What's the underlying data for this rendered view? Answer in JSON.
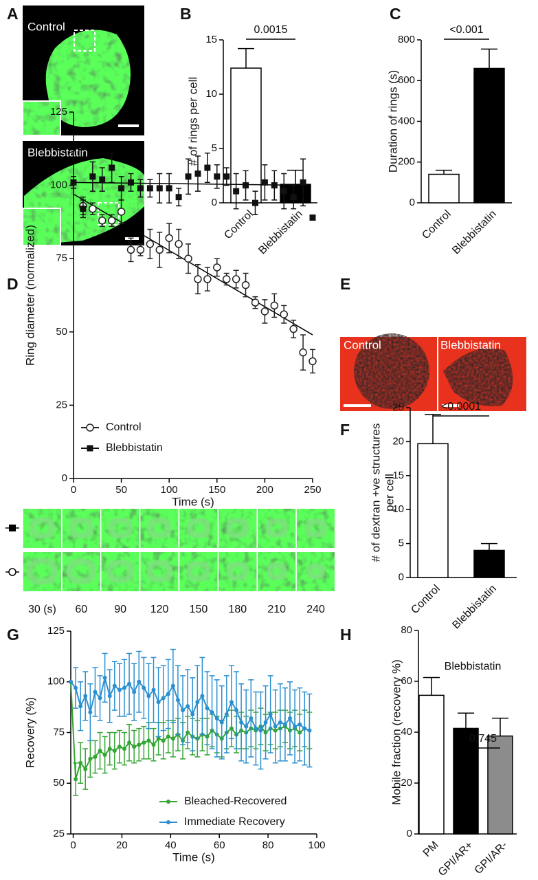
{
  "images": {
    "A": {
      "panel": "A",
      "labels": [
        "Control",
        "Blebbistatin"
      ]
    },
    "D_strip": {
      "times": [
        "30 (s)",
        "60",
        "90",
        "120",
        "150",
        "180",
        "210",
        "240"
      ]
    },
    "E": {
      "panel": "E",
      "labels": [
        "Control",
        "Blebbistatin"
      ]
    }
  },
  "chart_data": [
    {
      "panel": "B",
      "type": "bar",
      "ylabel": "# of rings per cell",
      "categories": [
        "Control",
        "Blebbistatin"
      ],
      "values": [
        12.4,
        1.7
      ],
      "errors": [
        1.8,
        1.3
      ],
      "colors": [
        "#ffffff",
        "#000000"
      ],
      "ylim": [
        0,
        15
      ],
      "yticks": [
        0,
        5,
        10,
        15
      ],
      "p_value": "0.0015"
    },
    {
      "panel": "C",
      "type": "bar",
      "ylabel": "Duration of rings (s)",
      "categories": [
        "Control",
        "Blebbistatin"
      ],
      "values": [
        140,
        660
      ],
      "errors": [
        20,
        95
      ],
      "colors": [
        "#ffffff",
        "#000000"
      ],
      "ylim": [
        0,
        800
      ],
      "yticks": [
        0,
        200,
        400,
        600,
        800
      ],
      "p_value": "<0.001"
    },
    {
      "panel": "D",
      "type": "scatter",
      "xlabel": "Time (s)",
      "ylabel": "Ring diameter (normalized)",
      "xlim": [
        0,
        250
      ],
      "xticks": [
        0,
        50,
        100,
        150,
        200,
        250
      ],
      "ylim": [
        0,
        125
      ],
      "yticks": [
        0,
        25,
        50,
        75,
        100,
        125
      ],
      "series": [
        {
          "name": "Control",
          "color": "#222222",
          "marker": "circle-open",
          "x": [
            10,
            20,
            30,
            40,
            50,
            60,
            70,
            80,
            90,
            100,
            110,
            120,
            130,
            140,
            150,
            160,
            170,
            180,
            190,
            200,
            210,
            220,
            230,
            240,
            250
          ],
          "values": [
            93,
            92,
            88,
            88,
            91,
            78,
            78,
            80,
            78,
            82,
            80,
            75,
            68,
            68,
            72,
            68,
            68,
            66,
            60,
            57,
            59,
            56,
            51,
            43,
            40
          ],
          "errors": [
            3,
            2,
            2,
            2,
            4,
            4,
            2,
            5,
            6,
            5,
            5,
            5,
            5,
            4,
            3,
            2,
            3,
            4,
            2,
            4,
            4,
            3,
            3,
            6,
            4
          ]
        },
        {
          "name": "Blebbistatin",
          "color": "#111111",
          "marker": "square",
          "x": [
            0,
            10,
            20,
            30,
            40,
            50,
            60,
            70,
            80,
            90,
            100,
            110,
            120,
            130,
            140,
            150,
            160,
            170,
            180,
            190,
            200,
            210,
            220,
            230,
            240,
            250
          ],
          "values": [
            101,
            92,
            103,
            102,
            106,
            99,
            101,
            99,
            99,
            99,
            99,
            96,
            103,
            104,
            106,
            103,
            103,
            98,
            100,
            94,
            101,
            100,
            98,
            96,
            101,
            89
          ],
          "errors": [
            2,
            3,
            5,
            4,
            5,
            4,
            3,
            3,
            3,
            5,
            5,
            3,
            6,
            6,
            5,
            4,
            3,
            6,
            5,
            4,
            6,
            5,
            6,
            4,
            8,
            0
          ]
        }
      ],
      "fits": [
        {
          "x": [
            0,
            250
          ],
          "values": [
            97,
            49
          ]
        },
        {
          "x": [
            0,
            245
          ],
          "values": [
            101,
            100
          ]
        }
      ]
    },
    {
      "panel": "F",
      "type": "bar",
      "ylabel": [
        "# of dextran +ve structures",
        "per cell"
      ],
      "categories": [
        "Control",
        "Blebbistatin"
      ],
      "values": [
        19.7,
        4.0
      ],
      "errors": [
        4.3,
        1.0
      ],
      "colors": [
        "#ffffff",
        "#000000"
      ],
      "ylim": [
        0,
        25
      ],
      "yticks": [
        0,
        5,
        10,
        15,
        20,
        25
      ],
      "p_value": "<0.0001"
    },
    {
      "panel": "G",
      "type": "line",
      "xlabel": "Time (s)",
      "ylabel": "Recovery (%)",
      "xlim": [
        -1,
        100
      ],
      "xticks": [
        0,
        20,
        40,
        60,
        80,
        100
      ],
      "ylim": [
        25,
        125
      ],
      "yticks": [
        25,
        50,
        75,
        100,
        125
      ],
      "x": [
        -1,
        1,
        3,
        5,
        7,
        9,
        11,
        13,
        15,
        17,
        19,
        21,
        23,
        25,
        27,
        29,
        31,
        33,
        35,
        37,
        39,
        41,
        43,
        45,
        47,
        49,
        51,
        53,
        55,
        57,
        59,
        61,
        63,
        65,
        67,
        69,
        71,
        73,
        75,
        77,
        79,
        81,
        83,
        85,
        87,
        89,
        91,
        93,
        95,
        97
      ],
      "series": [
        {
          "name": "Bleached-Recovered",
          "color": "#33a532",
          "marker": "circle",
          "values": [
            100,
            52,
            60,
            57,
            62,
            63,
            66,
            64,
            67,
            66,
            68,
            67,
            70,
            68,
            69,
            70,
            71,
            69,
            72,
            71,
            73,
            72,
            74,
            71,
            75,
            73,
            72,
            74,
            73,
            76,
            74,
            72,
            75,
            77,
            74,
            76,
            75,
            77,
            76,
            78,
            75,
            77,
            76,
            77,
            78,
            76,
            77,
            75,
            77,
            76
          ],
          "errors": [
            0,
            8,
            10,
            10,
            9,
            8,
            9,
            9,
            8,
            9,
            8,
            8,
            9,
            8,
            8,
            8,
            9,
            8,
            8,
            9,
            8,
            9,
            8,
            9,
            8,
            9,
            9,
            8,
            9,
            8,
            9,
            9,
            8,
            9,
            9,
            9,
            8,
            9,
            9,
            9,
            9,
            8,
            9,
            9,
            8,
            9,
            9,
            9,
            9,
            9
          ]
        },
        {
          "name": "Immediate Recovery",
          "color": "#2a8fd0",
          "marker": "circle",
          "values": [
            100,
            97,
            88,
            93,
            85,
            95,
            92,
            102,
            93,
            98,
            96,
            97,
            99,
            95,
            100,
            97,
            93,
            96,
            90,
            92,
            94,
            98,
            91,
            86,
            88,
            84,
            90,
            93,
            87,
            85,
            82,
            80,
            84,
            90,
            86,
            80,
            78,
            82,
            77,
            76,
            80,
            84,
            78,
            80,
            79,
            82,
            78,
            79,
            77,
            76
          ],
          "errors": [
            0,
            10,
            12,
            12,
            14,
            12,
            11,
            12,
            13,
            12,
            13,
            14,
            15,
            14,
            15,
            15,
            16,
            16,
            17,
            16,
            17,
            18,
            17,
            17,
            18,
            18,
            18,
            19,
            18,
            18,
            19,
            18,
            19,
            18,
            19,
            19,
            18,
            19,
            18,
            19,
            18,
            19,
            18,
            19,
            18,
            18,
            18,
            18,
            18,
            18
          ]
        }
      ]
    },
    {
      "panel": "H",
      "type": "bar",
      "ylabel": "Mobile fraction (recovery %)",
      "subtitle": "Blebbistatin",
      "categories": [
        "PM",
        "GPI/AR+",
        "GPI/AR-"
      ],
      "values": [
        54.5,
        41.5,
        38.5
      ],
      "errors": [
        7,
        6,
        7
      ],
      "colors": [
        "#ffffff",
        "#000000",
        "#8c8c8c"
      ],
      "ylim": [
        0,
        80
      ],
      "yticks": [
        0,
        20,
        40,
        60,
        80
      ],
      "p_value": "0.745"
    }
  ]
}
